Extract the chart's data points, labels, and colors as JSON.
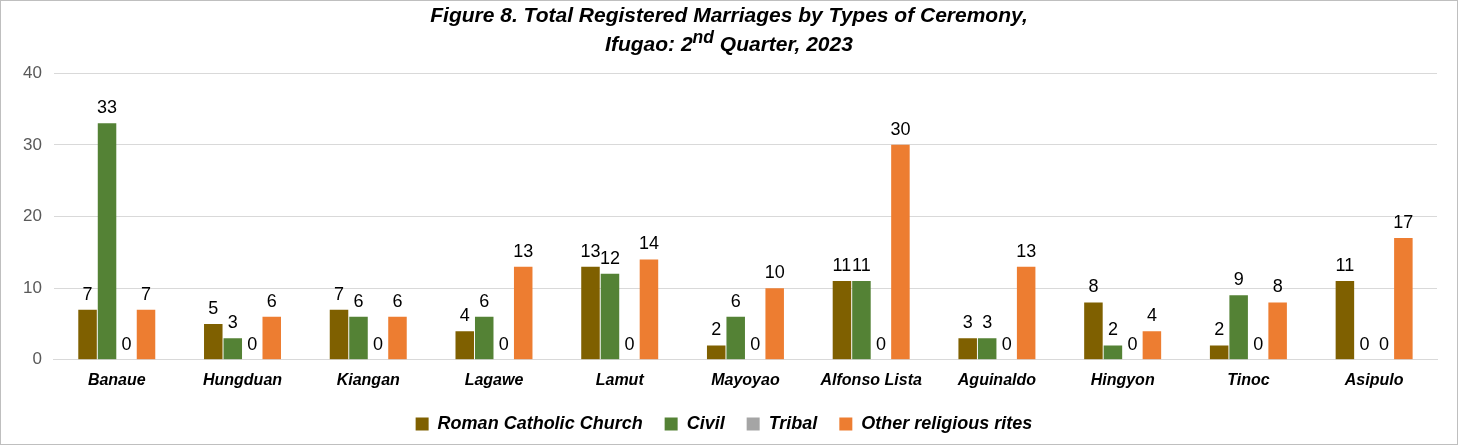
{
  "chart_data": {
    "type": "bar",
    "title": "Figure 8. Total Registered Marriages by Types of Ceremony, Ifugao: 2$^{nd}$ Quarter, 2023",
    "categories": [
      "Banaue",
      "Hungduan",
      "Kiangan",
      "Lagawe",
      "Lamut",
      "Mayoyao",
      "Alfonso Lista",
      "Aguinaldo",
      "Hingyon",
      "Tinoc",
      "Asipulo"
    ],
    "series": [
      {
        "name": "Roman Catholic Church",
        "color": "#7f6000",
        "values": [
          7,
          5,
          7,
          4,
          13,
          2,
          11,
          3,
          8,
          2,
          11
        ]
      },
      {
        "name": "Civil",
        "color": "#548235",
        "values": [
          33,
          3,
          6,
          6,
          12,
          6,
          11,
          3,
          2,
          9,
          0
        ]
      },
      {
        "name": "Tribal",
        "color": "#a5a5a5",
        "values": [
          0,
          0,
          0,
          0,
          0,
          0,
          0,
          0,
          0,
          0,
          0
        ]
      },
      {
        "name": "Other religious rites",
        "color": "#ed7d31",
        "values": [
          7,
          6,
          6,
          13,
          14,
          10,
          30,
          13,
          4,
          8,
          17
        ]
      }
    ],
    "ylim": [
      0,
      40
    ],
    "yticks": [
      0,
      10,
      20,
      30,
      40
    ],
    "grid": "y",
    "legend": "bottom",
    "data_labels": true
  }
}
